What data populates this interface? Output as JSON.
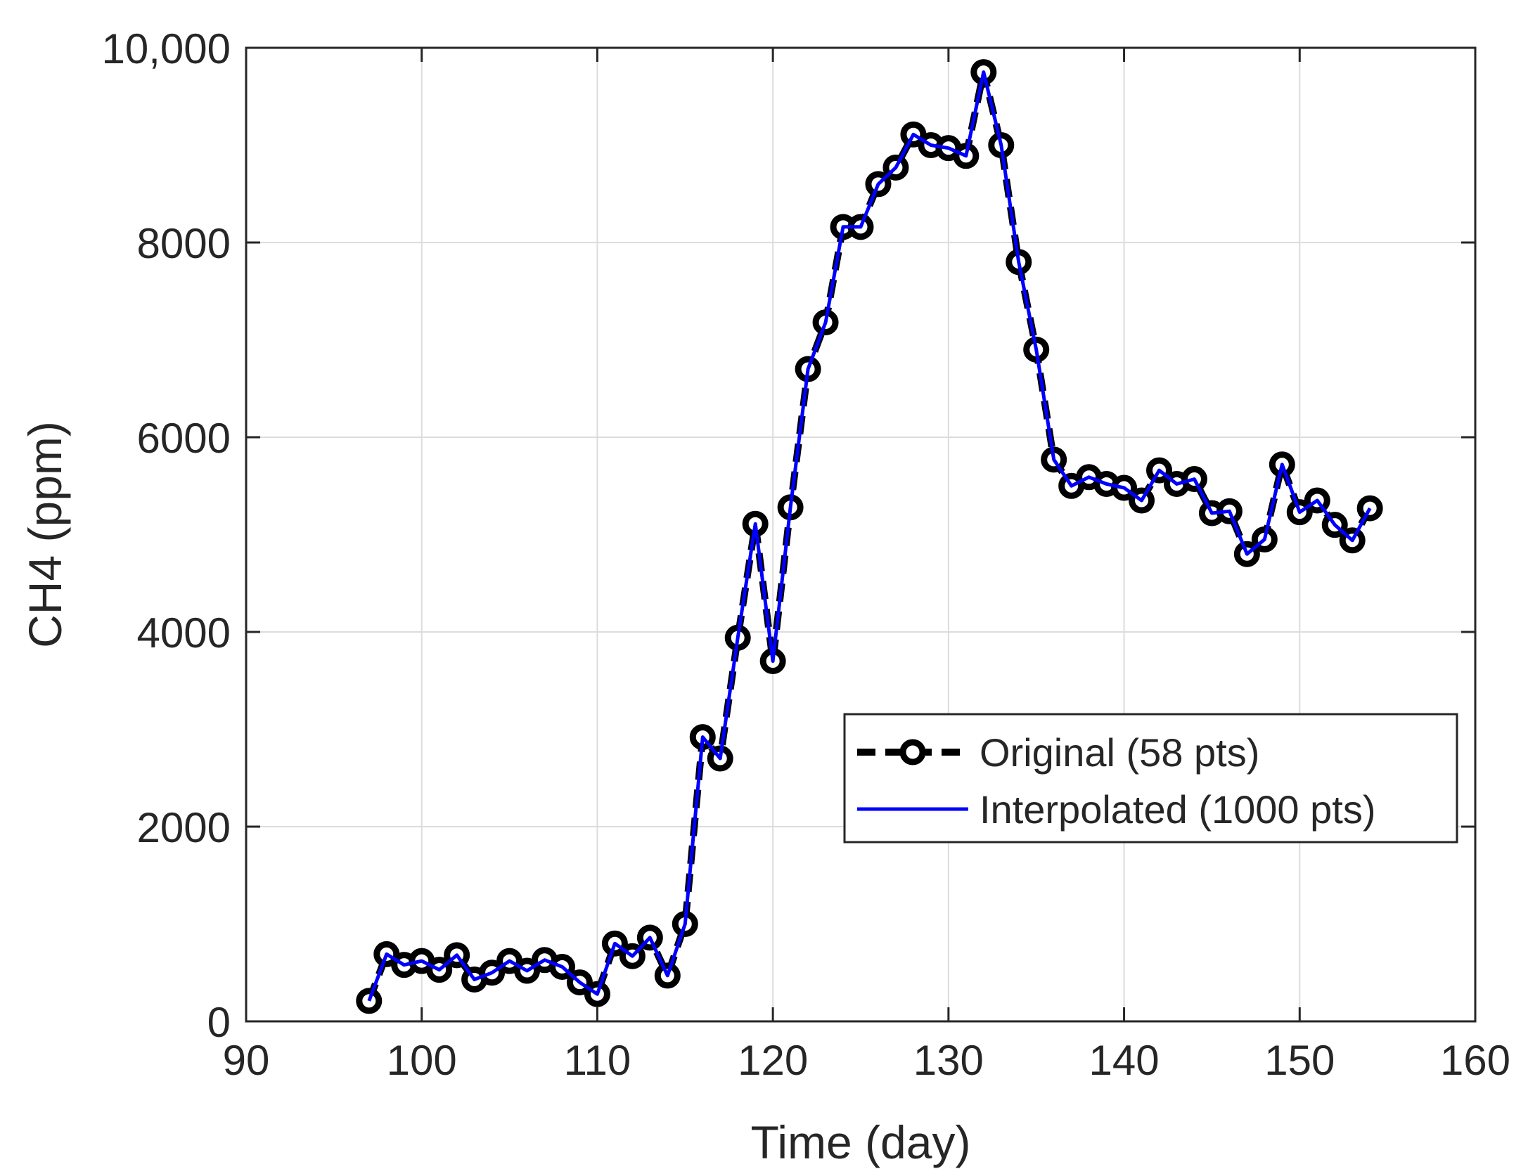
{
  "chart_data": {
    "type": "line",
    "title": "",
    "xlabel": "Time (day)",
    "ylabel": "CH4 (ppm)",
    "xlim": [
      90,
      160
    ],
    "ylim": [
      0,
      10000
    ],
    "xticks": [
      90,
      100,
      110,
      120,
      130,
      140,
      150,
      160
    ],
    "xtick_labels": [
      "90",
      "100",
      "110",
      "120",
      "130",
      "140",
      "150",
      "160"
    ],
    "yticks": [
      0,
      2000,
      4000,
      6000,
      8000,
      10000
    ],
    "ytick_labels": [
      "0",
      "2000",
      "4000",
      "6000",
      "8000",
      "10,000"
    ],
    "grid": true,
    "legend_position": "center-right",
    "series": [
      {
        "name": "Original (58 pts)",
        "color": "#000000",
        "line_style": "dashed",
        "marker": "circle",
        "x": [
          97,
          98,
          99,
          100,
          101,
          102,
          103,
          104,
          105,
          106,
          107,
          108,
          109,
          110,
          111,
          112,
          113,
          114,
          115,
          116,
          117,
          118,
          119,
          120,
          121,
          122,
          123,
          124,
          125,
          126,
          127,
          128,
          129,
          130,
          131,
          132,
          133,
          134,
          135,
          136,
          137,
          138,
          139,
          140,
          141,
          142,
          143,
          144,
          145,
          146,
          147,
          148,
          149,
          150,
          151,
          152,
          153,
          154
        ],
        "y": [
          210,
          690,
          580,
          620,
          530,
          680,
          430,
          500,
          620,
          520,
          630,
          560,
          400,
          280,
          800,
          670,
          860,
          470,
          1000,
          2920,
          2700,
          3940,
          5110,
          3700,
          5280,
          6700,
          7180,
          8160,
          8160,
          8600,
          8770,
          9110,
          9000,
          8970,
          8890,
          9750,
          9000,
          7800,
          6900,
          5770,
          5500,
          5590,
          5520,
          5480,
          5350,
          5660,
          5520,
          5570,
          5220,
          5240,
          4800,
          4950,
          5720,
          5230,
          5350,
          5100,
          4940,
          5270
        ]
      },
      {
        "name": "Interpolated (1000 pts)",
        "color": "#0000ff",
        "line_style": "solid",
        "marker": "none",
        "x": [
          97,
          98,
          99,
          100,
          101,
          102,
          103,
          104,
          105,
          106,
          107,
          108,
          109,
          110,
          111,
          112,
          113,
          114,
          115,
          116,
          117,
          118,
          119,
          120,
          121,
          122,
          123,
          124,
          125,
          126,
          127,
          128,
          129,
          130,
          131,
          132,
          133,
          134,
          135,
          136,
          137,
          138,
          139,
          140,
          141,
          142,
          143,
          144,
          145,
          146,
          147,
          148,
          149,
          150,
          151,
          152,
          153,
          154
        ],
        "y": [
          210,
          690,
          580,
          620,
          530,
          680,
          430,
          500,
          620,
          520,
          630,
          560,
          400,
          280,
          800,
          670,
          860,
          470,
          1000,
          2920,
          2700,
          3940,
          5110,
          3700,
          5280,
          6700,
          7180,
          8160,
          8160,
          8600,
          8770,
          9110,
          9000,
          8970,
          8890,
          9750,
          9000,
          7800,
          6900,
          5770,
          5500,
          5590,
          5520,
          5480,
          5350,
          5660,
          5520,
          5570,
          5220,
          5240,
          4800,
          4950,
          5720,
          5230,
          5350,
          5100,
          4940,
          5270
        ]
      }
    ]
  }
}
